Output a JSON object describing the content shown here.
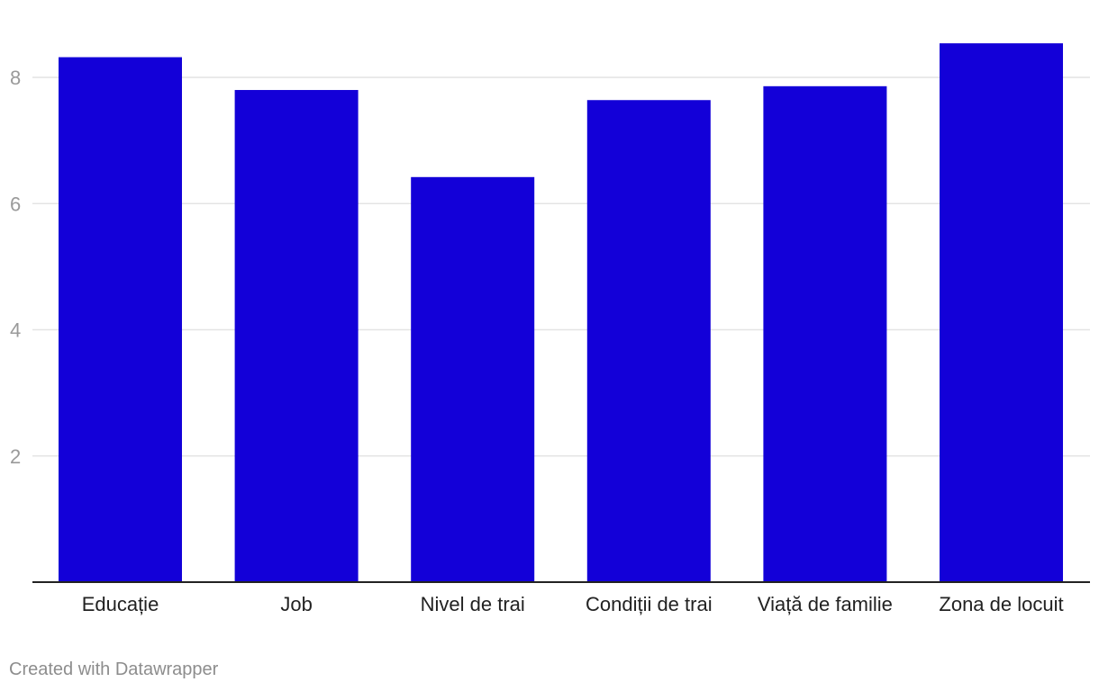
{
  "chart_data": {
    "type": "bar",
    "categories": [
      "Educație",
      "Job",
      "Nivel de trai",
      "Condiții de trai",
      "Viață de familie",
      "Zona de locuit"
    ],
    "values": [
      8.32,
      7.8,
      6.42,
      7.64,
      7.86,
      8.54
    ],
    "yticks": [
      2,
      4,
      6,
      8
    ],
    "ylim": [
      0,
      9
    ],
    "grid": true,
    "bar_color": "#1300d8"
  },
  "footer": {
    "credit": "Created with Datawrapper"
  }
}
